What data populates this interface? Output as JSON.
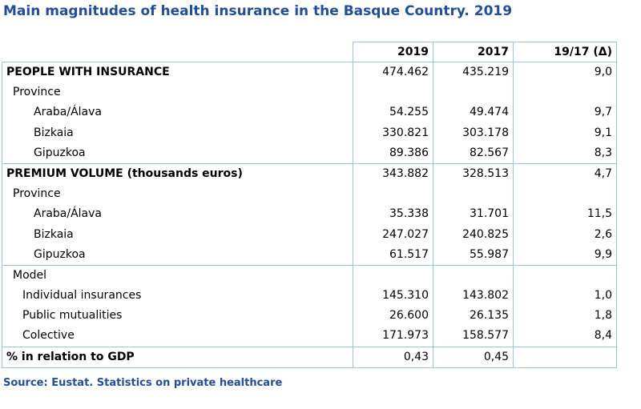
{
  "title": "Main magnitudes of health insurance in the Basque Country. 2019",
  "table": {
    "header": [
      "2019",
      "2017",
      "19/17 (Δ)"
    ],
    "sections": [
      {
        "rows": [
          {
            "label": "PEOPLE WITH INSURANCE",
            "values": [
              "474.462",
              "435.219",
              "9,0"
            ]
          },
          {
            "label": "Province"
          },
          {
            "label": "Araba/Álava",
            "values": [
              "54.255",
              "49.474",
              "9,7"
            ]
          },
          {
            "label": "Bizkaia",
            "values": [
              "330.821",
              "303.178",
              "9,1"
            ]
          },
          {
            "label": "Gipuzkoa",
            "values": [
              "89.386",
              "82.567",
              "8,3"
            ]
          }
        ]
      },
      {
        "rows": [
          {
            "label": "PREMIUM VOLUME (thousands euros)",
            "values": [
              "343.882",
              "328.513",
              "4,7"
            ]
          },
          {
            "label": "Province"
          },
          {
            "label": "Araba/Álava",
            "values": [
              "35.338",
              "31.701",
              "11,5"
            ]
          },
          {
            "label": "Bizkaia",
            "values": [
              "247.027",
              "240.825",
              "2,6"
            ]
          },
          {
            "label": "Gipuzkoa",
            "values": [
              "61.517",
              "55.987",
              "9,9"
            ]
          }
        ]
      },
      {
        "rows": [
          {
            "label": "Model"
          },
          {
            "label": "Individual insurances",
            "values": [
              "145.310",
              "143.802",
              "1,0"
            ]
          },
          {
            "label": "Public mutualities",
            "values": [
              "26.600",
              "26.135",
              "1,8"
            ]
          },
          {
            "label": "Colective",
            "values": [
              "171.973",
              "158.577",
              "8,4"
            ]
          }
        ]
      },
      {
        "rows": [
          {
            "label": "% in relation to GDP",
            "values": [
              "0,43",
              "0,45"
            ]
          }
        ]
      }
    ]
  },
  "source": "Source: Eustat. Statistics on private healthcare"
}
